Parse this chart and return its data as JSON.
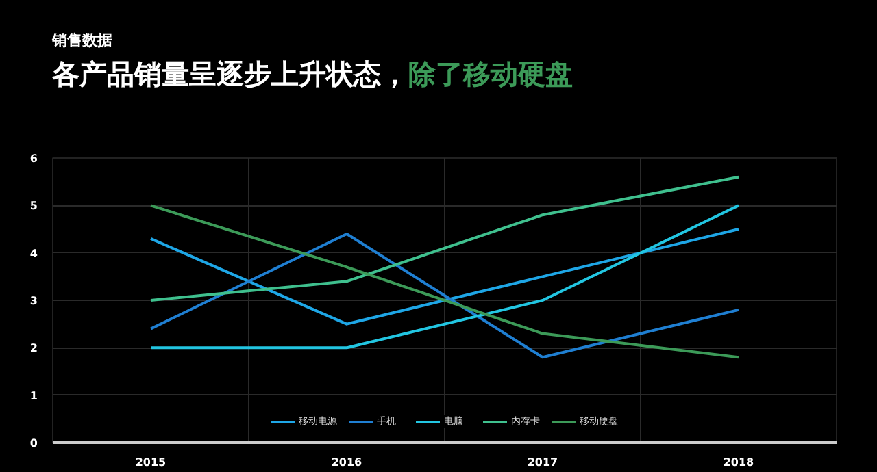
{
  "chart_data": {
    "type": "line",
    "subtitle": "销售数据",
    "title": "各产品销量呈逐步上升状态，",
    "annotations": [
      "除了移动硬盘"
    ],
    "categories": [
      "2015",
      "2016",
      "2017",
      "2018"
    ],
    "series": [
      {
        "name": "移动电源",
        "color": "#1ea6e6",
        "values": [
          4.3,
          2.5,
          3.5,
          4.5
        ]
      },
      {
        "name": "手机",
        "color": "#1f7fd2",
        "values": [
          2.4,
          4.4,
          1.8,
          2.8
        ]
      },
      {
        "name": "电脑",
        "color": "#22c6e2",
        "values": [
          2,
          2,
          3,
          5
        ]
      },
      {
        "name": "内存卡",
        "color": "#3fc08e",
        "values": [
          3,
          3.4,
          4.8,
          5.6
        ]
      },
      {
        "name": "移动硬盘",
        "color": "#3c9a58",
        "values": [
          5,
          3.7,
          2.3,
          1.8
        ]
      }
    ],
    "ylim": [
      0,
      6
    ],
    "yticks": [
      0,
      1,
      2,
      3,
      4,
      5,
      6
    ],
    "grid": true,
    "legend": "bottom",
    "marker": "none",
    "line_style": "solid"
  }
}
